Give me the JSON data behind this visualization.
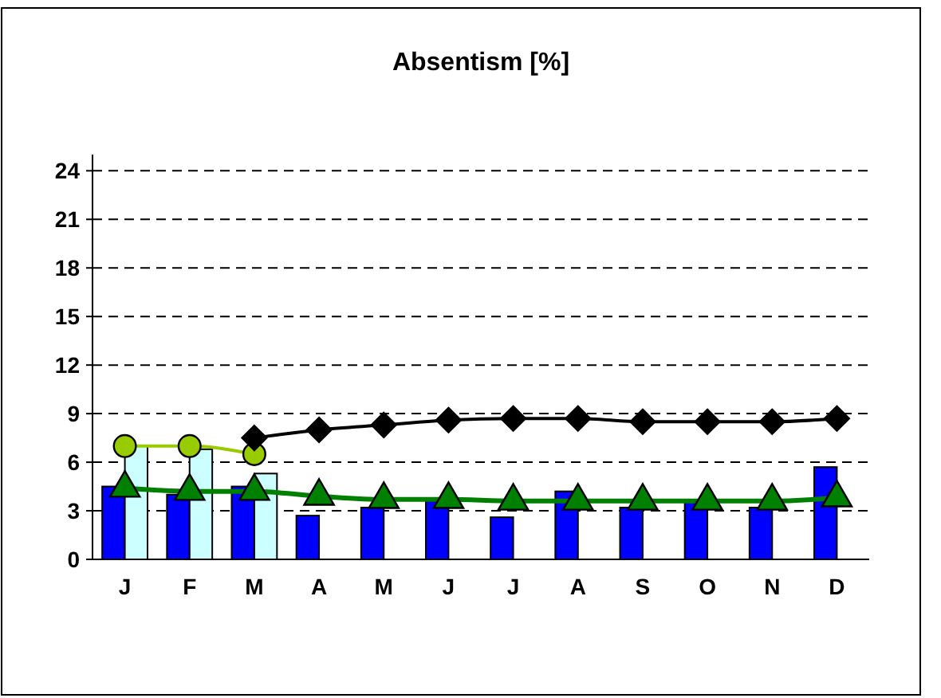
{
  "chart_data": {
    "type": "bar",
    "title": "Absentism [%]",
    "categories": [
      "J",
      "F",
      "M",
      "A",
      "M",
      "J",
      "J",
      "A",
      "S",
      "O",
      "N",
      "D"
    ],
    "ylim": [
      0,
      25
    ],
    "yticks": [
      0,
      3,
      6,
      9,
      12,
      15,
      18,
      21,
      24
    ],
    "grid": "y",
    "series": [
      {
        "color": "#0000ff",
        "values": [
          4.5,
          4.0,
          4.5,
          2.7,
          3.2,
          3.6,
          2.6,
          4.2,
          3.2,
          3.6,
          3.2,
          5.7
        ]
      },
      {
        "color": "#ccffff",
        "values": [
          7.0,
          6.8,
          5.3,
          null,
          null,
          null,
          null,
          null,
          null,
          null,
          null,
          null
        ]
      },
      {
        "type": "line",
        "color": "#99cc00",
        "marker": "circle",
        "values": [
          7.0,
          7.0,
          6.5,
          null,
          null,
          null,
          null,
          null,
          null,
          null,
          null,
          null
        ]
      },
      {
        "type": "line",
        "color": "#000000",
        "marker": "diamond",
        "values": [
          null,
          null,
          7.5,
          8.0,
          8.3,
          8.6,
          8.7,
          8.7,
          8.5,
          8.5,
          8.5,
          8.7
        ]
      },
      {
        "type": "line",
        "color": "#008000",
        "marker": "triangle",
        "values": [
          4.4,
          4.2,
          4.2,
          3.9,
          3.7,
          3.7,
          3.6,
          3.6,
          3.6,
          3.6,
          3.6,
          3.8
        ]
      }
    ]
  }
}
